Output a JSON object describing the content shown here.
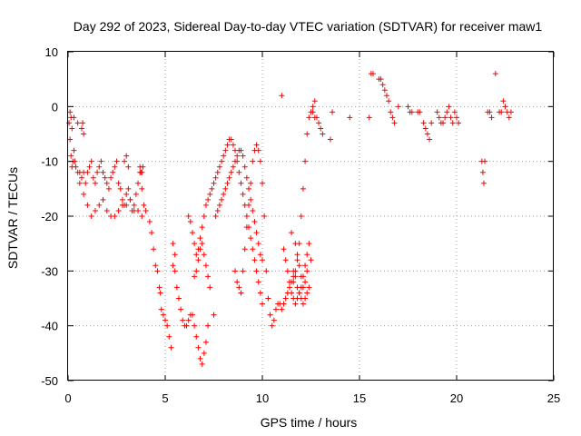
{
  "chart_data": {
    "type": "scatter",
    "title": "Day 292 of 2023, Sidereal Day-to-day VTEC variation (SDTVAR) for receiver maw1",
    "xlabel": "GPS time / hours",
    "ylabel": "SDTVAR / TECUs",
    "xlim": [
      0,
      25
    ],
    "ylim": [
      -50,
      10
    ],
    "x_ticks": [
      "0",
      "5",
      "10",
      "15",
      "20",
      "25"
    ],
    "y_ticks": [
      "10",
      "0",
      "-10",
      "-20",
      "-30",
      "-40",
      "-50"
    ],
    "grid": true,
    "marker": "plus",
    "color": "#ff0000",
    "series": [
      {
        "name": "SDTVAR",
        "x": [
          0.05,
          0.1,
          0.15,
          0.2,
          0.25,
          0.3,
          0.35,
          0.4,
          0.5,
          0.6,
          0.7,
          0.8,
          0.9,
          1.0,
          1.1,
          1.2,
          1.3,
          1.4,
          1.5,
          1.6,
          1.7,
          1.8,
          1.9,
          2.0,
          2.1,
          2.2,
          2.3,
          2.4,
          2.5,
          2.6,
          2.7,
          2.8,
          2.9,
          3.0,
          3.1,
          3.2,
          3.3,
          3.4,
          3.5,
          3.6,
          3.7,
          3.8,
          3.9,
          4.0,
          0.6,
          0.8,
          1.0,
          1.2,
          1.4,
          1.6,
          1.8,
          2.0,
          2.2,
          2.4,
          2.6,
          2.8,
          3.0,
          3.2,
          3.4,
          3.6,
          3.8,
          0.1,
          0.15,
          0.2,
          0.3,
          0.5,
          0.7,
          0.75,
          0.8,
          2.9,
          3.0,
          3.1,
          3.7,
          3.75,
          3.8,
          3.85,
          4.2,
          4.3,
          4.4,
          4.5,
          4.6,
          4.7,
          4.75,
          4.8,
          4.9,
          5.0,
          5.1,
          5.2,
          5.3,
          5.4,
          5.5,
          5.4,
          5.5,
          5.6,
          5.7,
          5.8,
          5.9,
          6.0,
          6.1,
          6.2,
          6.3,
          6.4,
          6.5,
          6.6,
          6.7,
          6.8,
          6.9,
          7.0,
          7.1,
          7.2,
          6.5,
          6.6,
          6.7,
          6.8,
          6.9,
          7.0,
          7.1,
          7.2,
          7.3,
          6.2,
          6.3,
          6.4,
          6.5,
          6.6,
          6.7,
          6.8,
          6.9,
          7.0,
          7.1,
          7.2,
          7.3,
          7.4,
          7.5,
          7.6,
          7.7,
          7.8,
          7.9,
          8.0,
          8.1,
          8.2,
          8.3,
          8.4,
          8.5,
          8.6,
          8.7,
          8.8,
          8.9,
          9.0,
          9.1,
          9.2,
          9.3,
          9.4,
          9.5,
          9.6,
          9.7,
          9.8,
          9.9,
          10.0,
          7.5,
          7.6,
          7.7,
          7.8,
          7.9,
          8.0,
          8.1,
          8.2,
          8.3,
          8.4,
          8.5,
          8.6,
          8.7,
          8.8,
          8.9,
          9.0,
          9.1,
          9.2,
          9.3,
          9.4,
          9.5,
          9.6,
          9.7,
          9.8,
          9.9,
          10.0,
          8.6,
          8.7,
          8.8,
          8.9,
          9.0,
          9.1,
          9.2,
          9.3,
          9.4,
          9.5,
          9.6,
          9.7,
          9.8,
          9.9,
          10.0,
          10.1,
          10.2,
          10.3,
          10.4,
          10.5,
          10.6,
          10.7,
          10.8,
          10.9,
          11.0,
          11.1,
          11.2,
          11.3,
          11.4,
          11.5,
          11.6,
          11.7,
          11.8,
          11.9,
          12.0,
          12.1,
          12.2,
          12.3,
          12.4,
          12.5,
          12.6,
          12.7,
          11.0,
          11.1,
          11.2,
          11.3,
          11.4,
          11.5,
          11.6,
          11.7,
          11.8,
          11.9,
          12.0,
          12.1,
          12.2,
          12.3,
          12.4,
          11.5,
          11.6,
          11.7,
          11.8,
          11.9,
          12.0,
          12.1,
          12.2,
          12.3,
          12.4,
          11.6,
          11.7,
          11.8,
          11.9,
          12.0,
          12.1,
          12.2,
          12.3,
          12.5,
          12.6,
          12.7,
          12.8,
          12.9,
          13.0,
          13.1,
          13.5,
          13.6,
          14.5,
          15.5,
          15.6,
          15.7,
          16.0,
          16.1,
          16.2,
          16.3,
          16.4,
          16.5,
          16.6,
          16.7,
          16.8,
          17.0,
          17.5,
          17.6,
          17.7,
          18.0,
          18.1,
          18.3,
          18.4,
          18.5,
          18.6,
          18.7,
          19.0,
          19.1,
          19.2,
          19.3,
          19.4,
          19.5,
          19.6,
          19.7,
          19.8,
          19.9,
          20.0,
          20.1,
          21.3,
          21.35,
          21.4,
          21.45,
          21.6,
          21.7,
          21.8,
          22.0,
          22.2,
          22.3,
          22.4,
          22.5,
          22.6,
          22.7,
          22.8
        ],
        "y": [
          -3,
          -6,
          -9,
          -11,
          -10,
          -8,
          -10,
          -11,
          -12,
          -12,
          -13,
          -12,
          -14,
          -12,
          -11,
          -10,
          -13,
          -14,
          -12,
          -11,
          -10,
          -12,
          -13,
          -14,
          -15,
          -13,
          -12,
          -11,
          -10,
          -14,
          -15,
          -17,
          -18,
          -16,
          -15,
          -17,
          -19,
          -19,
          -16,
          -14,
          -12,
          -15,
          -18,
          -19,
          -14,
          -16,
          -18,
          -20,
          -19,
          -18,
          -17,
          -19,
          -20,
          -20,
          -19,
          -18,
          -18,
          -17,
          -18,
          -19,
          -20,
          -1,
          -2,
          -4,
          -2,
          -3,
          -4,
          -3,
          -5,
          -10,
          -9,
          -11,
          -11,
          -12,
          -12,
          -11,
          -21,
          -23,
          -26,
          -29,
          -30,
          -33,
          -34,
          -37,
          -38,
          -39,
          -40,
          -42,
          -44,
          -25,
          -27,
          -29,
          -30,
          -33,
          -35,
          -37,
          -39,
          -40,
          -40,
          -39,
          -38,
          -38,
          -40,
          -42,
          -44,
          -46,
          -47,
          -45,
          -43,
          -40,
          -31,
          -30,
          -28,
          -26,
          -25,
          -27,
          -29,
          -31,
          -33,
          -20,
          -21,
          -23,
          -25,
          -27,
          -26,
          -24,
          -22,
          -20,
          -18,
          -17,
          -16,
          -15,
          -14,
          -13,
          -12,
          -11,
          -10,
          -9,
          -8,
          -7,
          -6,
          -6,
          -7,
          -8,
          -10,
          -12,
          -14,
          -16,
          -18,
          -20,
          -22,
          -24,
          -26,
          -28,
          -30,
          -32,
          -34,
          -36,
          -38,
          -20,
          -19,
          -18,
          -17,
          -16,
          -15,
          -14,
          -13,
          -12,
          -11,
          -10,
          -9,
          -8,
          -8,
          -9,
          -11,
          -13,
          -15,
          -17,
          -19,
          -21,
          -23,
          -25,
          -27,
          -28,
          -30,
          -32,
          -33,
          -34,
          -30,
          -26,
          -22,
          -18,
          -14,
          -10,
          -8,
          -7,
          -8,
          -10,
          -14,
          -20,
          -30,
          -35,
          -38,
          -40,
          -39,
          -37,
          -36,
          -36,
          -37,
          -36,
          -35,
          -34,
          -33,
          -32,
          -31,
          -30,
          -28,
          -25,
          -20,
          -15,
          -10,
          -5,
          -2,
          -1,
          0,
          1,
          2,
          -26,
          -28,
          -30,
          -32,
          -34,
          -35,
          -36,
          -35,
          -34,
          -33,
          -31,
          -29,
          -27,
          -25,
          -23,
          -30,
          -31,
          -33,
          -34,
          -35,
          -36,
          -35,
          -34,
          -33,
          -32,
          -25,
          -27,
          -29,
          -31,
          -33,
          -32,
          -30,
          -28,
          -1,
          -2,
          -2,
          -3,
          -4,
          -5,
          -6,
          -1,
          -2,
          -2,
          6,
          6,
          5,
          5,
          4,
          3,
          2,
          1,
          -1,
          -2,
          -3,
          0,
          0,
          -1,
          -1,
          -1,
          -1,
          -3,
          -4,
          -5,
          -6,
          -3,
          -1,
          -2,
          -3,
          -3,
          -2,
          -1,
          0,
          -2,
          -3,
          -1,
          -2,
          -3,
          -10,
          -12,
          -14,
          -10,
          -1,
          -1,
          -2,
          6,
          -1,
          -1,
          1,
          0,
          -1,
          -2,
          -1
        ]
      }
    ]
  }
}
